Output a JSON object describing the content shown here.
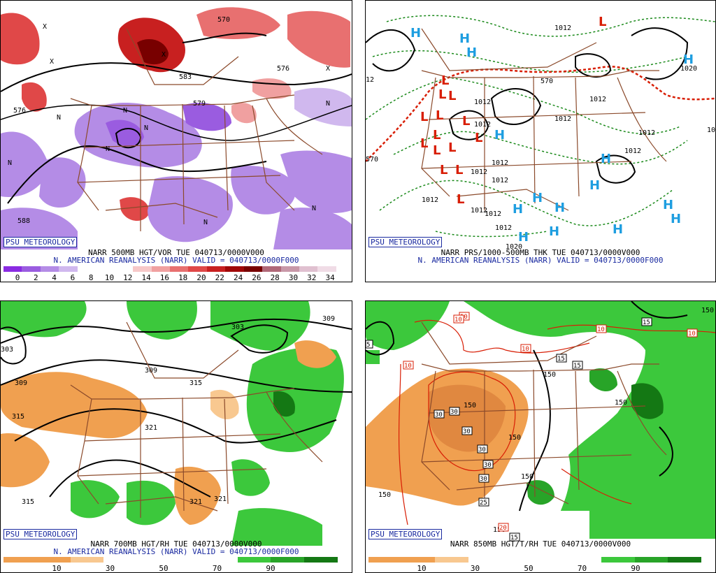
{
  "panels": [
    {
      "id": "vorticity",
      "badge": "PSU METEOROLOGY",
      "caption_line1": "NARR 500MB HGT/VOR TUE 040713/0000V000",
      "caption_line2": "N. AMERICAN REANALYSIS (NARR) VALID = 040713/0000F000",
      "colorbar_ticks": [
        "0",
        "2",
        "4",
        "6",
        "8",
        "10",
        "12",
        "14",
        "16",
        "18",
        "20",
        "22",
        "24",
        "26",
        "28",
        "30",
        "32",
        "34"
      ],
      "colorbar_colors": [
        "#8a2be2",
        "#9a5ce0",
        "#b48ce6",
        "#d0b8ee",
        "#ffffff",
        "#ffffff",
        "#ffffff",
        "#f7c8c8",
        "#f0a0a0",
        "#e87070",
        "#e04848",
        "#c82020",
        "#a00808",
        "#780000",
        "#b06878",
        "#c898a8",
        "#e0c0d0",
        "#f0dce6"
      ],
      "contour_labels": [
        "576",
        "588",
        "579",
        "583",
        "570",
        "576"
      ],
      "symbols": [
        "N",
        "X"
      ]
    },
    {
      "id": "thickness",
      "badge": "PSU METEOROLOGY",
      "caption_line1": "NARR PRS/1000-500MB THK TUE 040713/0000V000",
      "caption_line2": "N. AMERICAN REANALYSIS (NARR) VALID = 040713/0000F000",
      "contour_labels": [
        "1012",
        "1020",
        "570",
        "1012",
        "1012",
        "1012",
        "1012",
        "1012",
        "1012",
        "1012",
        "1012",
        "1012",
        "1012",
        "1012",
        "1012",
        "1012",
        "12",
        "570",
        "10",
        "1012"
      ],
      "highs": [
        "H",
        "H",
        "H",
        "H",
        "H",
        "H",
        "H",
        "H",
        "H",
        "H",
        "H",
        "H",
        "H",
        "H",
        "H"
      ],
      "lows": [
        "L",
        "L",
        "L",
        "L",
        "L",
        "L",
        "L",
        "L",
        "L",
        "L",
        "L",
        "L",
        "L",
        "L",
        "L"
      ]
    },
    {
      "id": "rh700",
      "badge": "PSU METEOROLOGY",
      "caption_line1": "NARR 700MB HGT/RH TUE 040713/0000V000",
      "caption_line2": "N. AMERICAN REANALYSIS (NARR) VALID = 040713/0000F000",
      "colorbar_ticks": [
        "10",
        "30",
        "50",
        "70",
        "90"
      ],
      "colorbar_colors": [
        "#f0a050",
        "#f0a050",
        "#f8c890",
        "#ffffff",
        "#ffffff",
        "#ffffff",
        "#ffffff",
        "#3cc83c",
        "#28a428",
        "#147814"
      ],
      "contour_labels": [
        "303",
        "309",
        "315",
        "315",
        "309",
        "321",
        "321",
        "321",
        "315",
        "309",
        "303"
      ]
    },
    {
      "id": "rh850",
      "badge": "PSU METEOROLOGY",
      "caption_line1": "NARR 850MB HGT/T/RH TUE 040713/0000V000",
      "caption_line2": "",
      "colorbar_ticks": [
        "10",
        "30",
        "50",
        "70",
        "90"
      ],
      "colorbar_colors": [
        "#f0a050",
        "#f0a050",
        "#f8c890",
        "#ffffff",
        "#ffffff",
        "#ffffff",
        "#ffffff",
        "#3cc83c",
        "#28a428",
        "#147814"
      ],
      "contour_labels": [
        "150",
        "150",
        "150",
        "150",
        "150",
        "150",
        "150",
        "150"
      ],
      "temp_labels": [
        "10",
        "10",
        "10",
        "10",
        "10",
        "15",
        "15",
        "15",
        "30",
        "30",
        "30",
        "30",
        "30",
        "30",
        "25",
        "20",
        "15",
        "5",
        "10"
      ]
    }
  ],
  "palette": {
    "border": "#8b4a2b",
    "badge_blue": "#1a2aa0",
    "high_blue": "#1e9ee0",
    "low_red": "#d81e05",
    "green_dash": "#1b8a1b",
    "red_dash": "#d81e05"
  }
}
